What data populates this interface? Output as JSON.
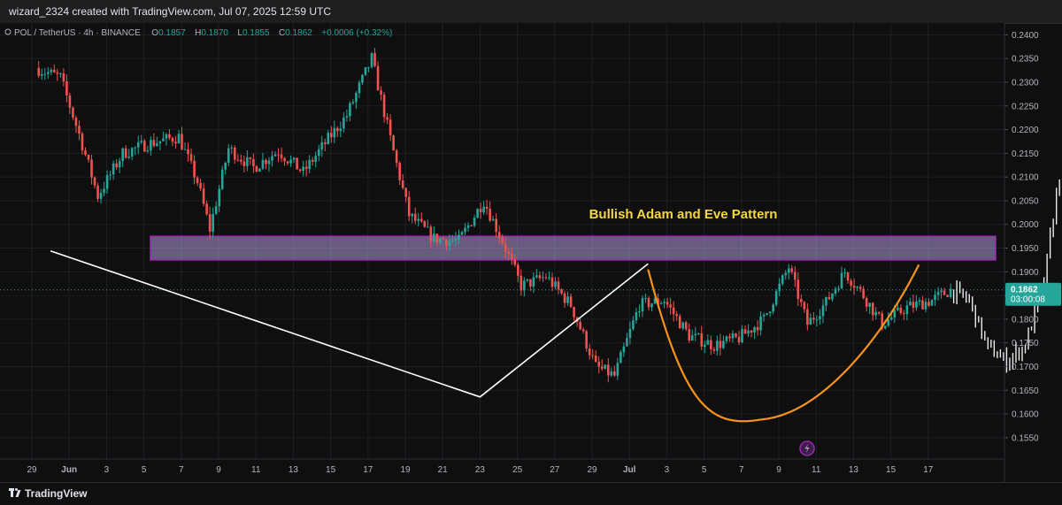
{
  "header": {
    "credit": "wizard_2324 created with TradingView.com, Jul 07, 2025 12:59 UTC"
  },
  "footer": {
    "brand": "TradingView"
  },
  "colors": {
    "up": "#26a69a",
    "down": "#ef5350",
    "projection": "#e9ecef",
    "curve": "#f7931a",
    "zone_fill": "#b39ddb",
    "zone_stroke": "#9c27b0",
    "annotation": "#f5d742"
  },
  "chart_data": {
    "type": "candlestick",
    "symbol": "POL / TetherUS · 4h · BINANCE",
    "ohlc": {
      "o_label": "O",
      "o": "0.1857",
      "h_label": "H",
      "h": "0.1870",
      "l_label": "L",
      "l": "0.1855",
      "c_label": "C",
      "c": "0.1862",
      "change": "+0.0006 (+0.32%)"
    },
    "y_ticks": [
      "0.2400",
      "0.2350",
      "0.2300",
      "0.2250",
      "0.2200",
      "0.2150",
      "0.2100",
      "0.2050",
      "0.2000",
      "0.1950",
      "0.1900",
      "0.1850",
      "0.1800",
      "0.1750",
      "0.1700",
      "0.1650",
      "0.1600",
      "0.1550"
    ],
    "ylim": [
      0.1505,
      0.2425
    ],
    "x_ticks": [
      "29",
      "Jun",
      "3",
      "5",
      "7",
      "9",
      "11",
      "13",
      "15",
      "17",
      "19",
      "21",
      "23",
      "25",
      "27",
      "29",
      "Jul",
      "3",
      "5",
      "7",
      "9",
      "11",
      "13",
      "15",
      "17"
    ],
    "last_price": {
      "value": 0.1862,
      "label": "0.1862",
      "countdown": "03:00:08"
    },
    "annotation": "Bullish Adam and Eve Pattern",
    "zone": {
      "low": 0.1925,
      "high": 0.1975
    },
    "adam": [
      {
        "x": "May 30",
        "y": 0.1944
      },
      {
        "x": "Jun 22",
        "y": 0.1636
      },
      {
        "x": "Jul 1",
        "y": 0.1917
      }
    ],
    "eve": {
      "start": {
        "x": "Jul 1",
        "y": 0.1905
      },
      "bottom": {
        "x": "Jul 7",
        "y": 0.1588
      },
      "end": {
        "x": "Jul 15",
        "y": 0.1915
      }
    },
    "anchors": [
      {
        "i": 0,
        "p": 0.233
      },
      {
        "i": 8,
        "p": 0.231
      },
      {
        "i": 14,
        "p": 0.219
      },
      {
        "i": 20,
        "p": 0.206
      },
      {
        "i": 28,
        "p": 0.215
      },
      {
        "i": 36,
        "p": 0.217
      },
      {
        "i": 46,
        "p": 0.2185
      },
      {
        "i": 52,
        "p": 0.209
      },
      {
        "i": 56,
        "p": 0.199
      },
      {
        "i": 62,
        "p": 0.216
      },
      {
        "i": 70,
        "p": 0.212
      },
      {
        "i": 78,
        "p": 0.2155
      },
      {
        "i": 86,
        "p": 0.211
      },
      {
        "i": 94,
        "p": 0.218
      },
      {
        "i": 100,
        "p": 0.223
      },
      {
        "i": 108,
        "p": 0.235
      },
      {
        "i": 114,
        "p": 0.218
      },
      {
        "i": 120,
        "p": 0.202
      },
      {
        "i": 128,
        "p": 0.197
      },
      {
        "i": 136,
        "p": 0.1965
      },
      {
        "i": 144,
        "p": 0.205
      },
      {
        "i": 150,
        "p": 0.1965
      },
      {
        "i": 156,
        "p": 0.187
      },
      {
        "i": 164,
        "p": 0.189
      },
      {
        "i": 172,
        "p": 0.183
      },
      {
        "i": 180,
        "p": 0.17
      },
      {
        "i": 186,
        "p": 0.168
      },
      {
        "i": 194,
        "p": 0.183
      },
      {
        "i": 202,
        "p": 0.184
      },
      {
        "i": 210,
        "p": 0.1765
      },
      {
        "i": 218,
        "p": 0.1745
      },
      {
        "i": 226,
        "p": 0.176
      },
      {
        "i": 234,
        "p": 0.18
      },
      {
        "i": 242,
        "p": 0.191
      },
      {
        "i": 248,
        "p": 0.179
      },
      {
        "i": 254,
        "p": 0.1835
      },
      {
        "i": 260,
        "p": 0.19
      },
      {
        "i": 266,
        "p": 0.185
      },
      {
        "i": 272,
        "p": 0.179
      },
      {
        "i": 280,
        "p": 0.1825
      },
      {
        "i": 288,
        "p": 0.184
      },
      {
        "i": 294,
        "p": 0.1862
      }
    ],
    "projection_anchors": [
      {
        "i": 294,
        "p": 0.1862
      },
      {
        "i": 300,
        "p": 0.184
      },
      {
        "i": 306,
        "p": 0.174
      },
      {
        "i": 312,
        "p": 0.171
      },
      {
        "i": 318,
        "p": 0.1745
      },
      {
        "i": 324,
        "p": 0.188
      },
      {
        "i": 330,
        "p": 0.215
      },
      {
        "i": 336,
        "p": 0.212
      },
      {
        "i": 342,
        "p": 0.206
      },
      {
        "i": 348,
        "p": 0.2035
      },
      {
        "i": 352,
        "p": 0.219
      }
    ]
  }
}
